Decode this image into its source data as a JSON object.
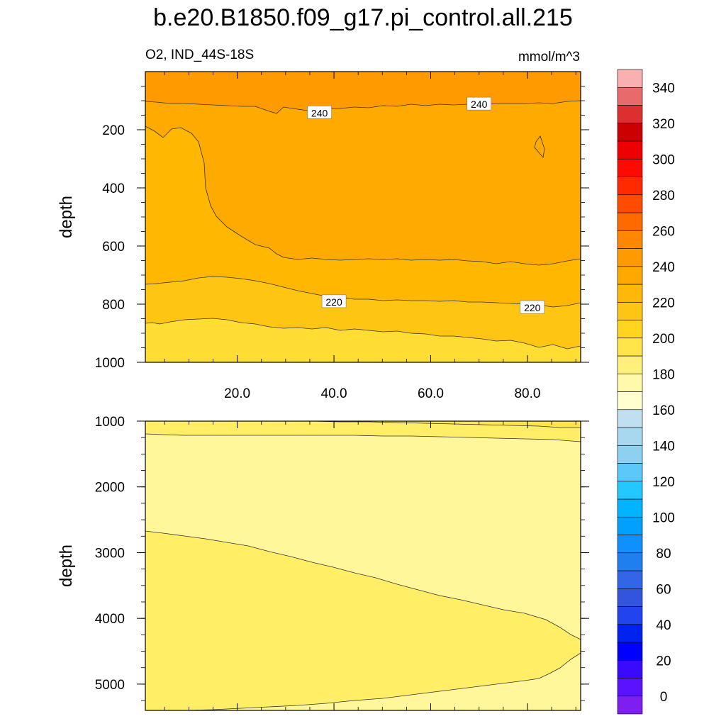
{
  "chart_data": {
    "type": "contour",
    "title": "b.e20.B1850.f09_g17.pi_control.all.215",
    "variable_label": "O2, IND_44S-18S",
    "units_label": "mmol/m^3",
    "ylabel": "depth",
    "x_ticks": [
      "20.0",
      "40.0",
      "60.0",
      "80.0"
    ],
    "x_tick_values": [
      20,
      40,
      60,
      80
    ],
    "xlim": [
      1,
      91
    ],
    "panels": [
      {
        "name": "upper",
        "ylim": [
          0,
          1000
        ],
        "y_inverted": true,
        "y_ticks": [
          "200",
          "400",
          "600",
          "800",
          "1000"
        ],
        "y_tick_values": [
          200,
          400,
          600,
          800,
          1000
        ],
        "fills": [
          {
            "level": "240-250",
            "color": "#ff9a00"
          },
          {
            "level": "230-240",
            "color": "#ffaa00"
          },
          {
            "level": "220-230",
            "color": "#ffb700"
          },
          {
            "level": "210-220",
            "color": "#ffc513"
          },
          {
            "level": "200-210",
            "color": "#ffdd33"
          }
        ],
        "contour_labels": [
          {
            "text": "240",
            "x": 37,
            "depth": 140
          },
          {
            "text": "240",
            "x": 70,
            "depth": 110
          },
          {
            "text": "220",
            "x": 40,
            "depth": 790
          },
          {
            "text": "220",
            "x": 81,
            "depth": 810
          }
        ]
      },
      {
        "name": "lower",
        "ylim": [
          1000,
          5400
        ],
        "y_inverted": true,
        "y_ticks": [
          "1000",
          "2000",
          "3000",
          "4000",
          "5000"
        ],
        "y_tick_values": [
          1000,
          2000,
          3000,
          4000,
          5000
        ],
        "fills": [
          {
            "level": "190-200",
            "color": "#ffee66"
          },
          {
            "level": "180-190",
            "color": "#fff799"
          }
        ]
      }
    ],
    "colorbar": {
      "labels": [
        "0",
        "20",
        "40",
        "60",
        "80",
        "100",
        "120",
        "140",
        "160",
        "180",
        "200",
        "220",
        "240",
        "260",
        "280",
        "300",
        "320",
        "340"
      ],
      "colors": [
        "#7e1ef0",
        "#5b12ff",
        "#3a09ff",
        "#0000ff",
        "#0022ee",
        "#2244ee",
        "#3355dd",
        "#3366e6",
        "#1f7fee",
        "#1090ff",
        "#00a0ff",
        "#00b4ff",
        "#22c8ff",
        "#5ac8f8",
        "#8dd0f0",
        "#a8d8f0",
        "#c0e0f2",
        "#ffffd0",
        "#fff9aa",
        "#fff07c",
        "#ffe54a",
        "#ffd522",
        "#ffc514",
        "#ffb70a",
        "#ffa800",
        "#ff9a00",
        "#ff8800",
        "#ff6a00",
        "#ff4c00",
        "#ff2a00",
        "#ff0a00",
        "#ee0000",
        "#cc0000",
        "#dc3030",
        "#e86a6a",
        "#f8b0b0"
      ]
    }
  }
}
